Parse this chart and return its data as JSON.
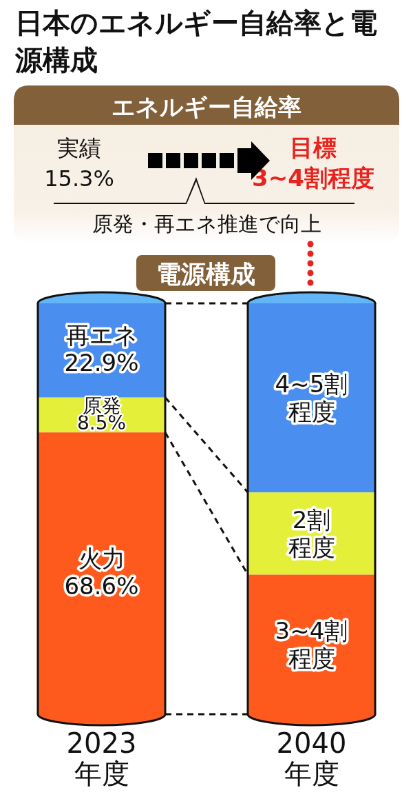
{
  "chart_data": {
    "type": "bar",
    "title": "日本のエネルギー自給率と電源構成",
    "subtitle": "電源構成",
    "stacked": true,
    "categories": [
      "2023\n年度",
      "2040\n年度"
    ],
    "series": [
      {
        "name": "火力",
        "color": "#ff5a1e",
        "values": [
          68.6,
          34
        ],
        "value_labels": [
          "68.6%",
          null
        ]
      },
      {
        "name": "原発",
        "color": "#e4ef3a",
        "values": [
          8.5,
          20
        ],
        "value_labels": [
          "8.5%",
          null
        ]
      },
      {
        "name": "再エネ",
        "color": "#4a8ff0",
        "values": [
          22.9,
          46
        ],
        "value_labels": [
          "22.9%",
          null
        ]
      }
    ],
    "annotations": [
      "エネルギー自給率",
      "実績\n15.3%",
      "目標\n3~4割程度",
      "原発・再エネ推進で向上",
      "4~5割程度",
      "2割程度",
      "3~4割程度"
    ]
  }
}
